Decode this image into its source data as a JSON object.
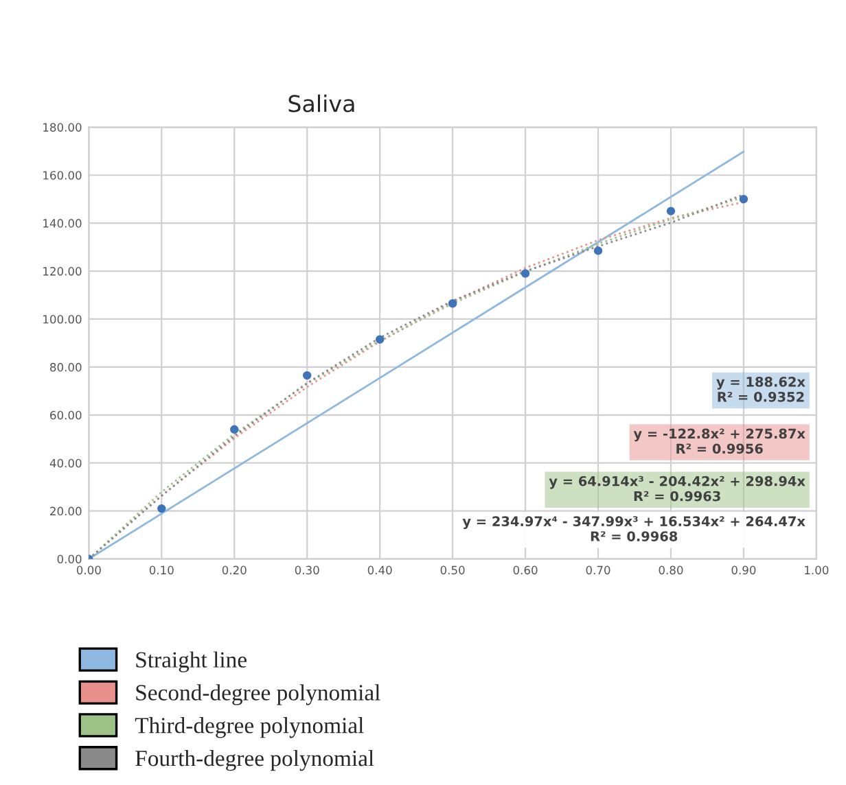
{
  "chart_data": {
    "type": "scatter",
    "title": "Saliva",
    "x": [
      0,
      0.1,
      0.2,
      0.3,
      0.4,
      0.5,
      0.6,
      0.7,
      0.8,
      0.9
    ],
    "series": [
      {
        "marker": "circle",
        "color": "#3f74b8",
        "values": [
          0,
          21,
          54,
          76.5,
          91.5,
          106.5,
          119,
          128.5,
          145,
          150
        ]
      },
      {
        "type": "line",
        "name": "Straight line",
        "color": "#8fb8e0",
        "line_style": "solid",
        "x": [
          0,
          0.9
        ],
        "values": [
          0,
          169.8
        ]
      },
      {
        "type": "line",
        "name": "Second-degree polynomial",
        "color": "#e8908c",
        "line_style": "dotted",
        "x": [
          0,
          0.1,
          0.2,
          0.3,
          0.4,
          0.5,
          0.6,
          0.7,
          0.8,
          0.9
        ],
        "values": [
          0,
          26.4,
          50.3,
          71.7,
          90.7,
          107.2,
          121.3,
          132.9,
          142.1,
          148.8
        ]
      },
      {
        "type": "line",
        "name": "Third-degree polynomial",
        "color": "#9cc286",
        "line_style": "dotted",
        "x": [
          0,
          0.1,
          0.2,
          0.3,
          0.4,
          0.5,
          0.6,
          0.7,
          0.8,
          0.9
        ],
        "values": [
          0,
          27.9,
          52.1,
          73.0,
          91.0,
          106.5,
          119.8,
          131.4,
          141.6,
          150.8
        ]
      },
      {
        "type": "line",
        "name": "Fourth-degree polynomial",
        "color": "#8a8a8a",
        "line_style": "dotted",
        "x": [
          0,
          0.1,
          0.2,
          0.3,
          0.4,
          0.5,
          0.6,
          0.7,
          0.8,
          0.9
        ],
        "values": [
          0,
          26.3,
          51.2,
          73.3,
          92.2,
          107.6,
          119.9,
          130.3,
          140.2,
          151.9
        ]
      }
    ],
    "annotations": [
      "y = 188.62x\nR² = 0.9352",
      "y = -122.8x² + 275.87x\nR² = 0.9956",
      "y = 64.914x³ - 204.42x² + 298.94x\nR² = 0.9963",
      "y = 234.97x⁴ - 347.99x³ + 16.534x² + 264.47x\nR² = 0.9968"
    ],
    "xlim": [
      0,
      1
    ],
    "xticks": [
      {
        "value": 0,
        "label": "0.00"
      },
      {
        "value": 0.1,
        "label": "0.10"
      },
      {
        "value": 0.2,
        "label": "0.20"
      },
      {
        "value": 0.3,
        "label": "0.30"
      },
      {
        "value": 0.4,
        "label": "0.40"
      },
      {
        "value": 0.5,
        "label": "0.50"
      },
      {
        "value": 0.6,
        "label": "0.60"
      },
      {
        "value": 0.7,
        "label": "0.70"
      },
      {
        "value": 0.8,
        "label": "0.80"
      },
      {
        "value": 0.9,
        "label": "0.90"
      },
      {
        "value": 1,
        "label": "1.00"
      }
    ],
    "ylim": [
      0,
      180
    ],
    "yticks": [
      {
        "value": 0,
        "label": "0.00"
      },
      {
        "value": 20,
        "label": "20.00"
      },
      {
        "value": 40,
        "label": "40.00"
      },
      {
        "value": 60,
        "label": "60.00"
      },
      {
        "value": 80,
        "label": "80.00"
      },
      {
        "value": 100,
        "label": "100.00"
      },
      {
        "value": 120,
        "label": "120.00"
      },
      {
        "value": 140,
        "label": "140.00"
      },
      {
        "value": 160,
        "label": "160.00"
      },
      {
        "value": 180,
        "label": "180.00"
      }
    ],
    "grid": true,
    "legend": "bottom"
  }
}
